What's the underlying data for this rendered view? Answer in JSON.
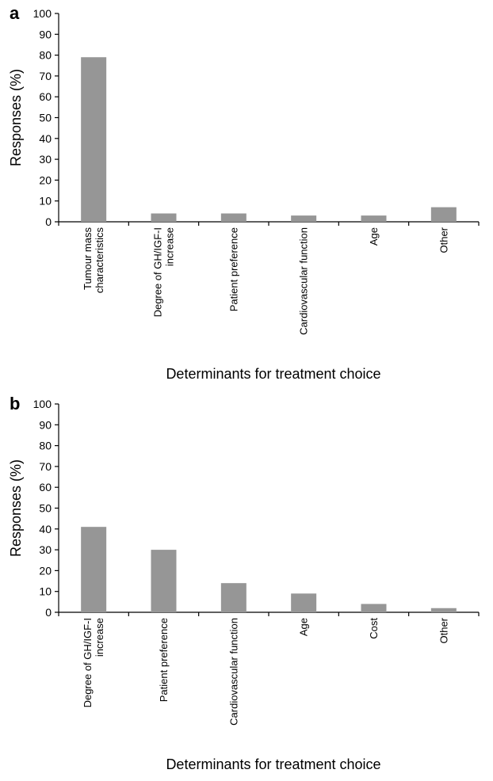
{
  "chart_data": [
    {
      "panel": "a",
      "type": "bar",
      "categories": [
        [
          "Tumour mass",
          "characteristics"
        ],
        [
          "Degree of GH/IGF-I",
          "increase"
        ],
        [
          "Patient preference"
        ],
        [
          "Cardiovascular function"
        ],
        [
          "Age"
        ],
        [
          "Other"
        ]
      ],
      "values": [
        79,
        4,
        4,
        3,
        3,
        7
      ],
      "xlabel": "Determinants for treatment choice",
      "ylabel": "Responses (%)",
      "ylim": [
        0,
        100
      ],
      "yticks": [
        0,
        10,
        20,
        30,
        40,
        50,
        60,
        70,
        80,
        90,
        100
      ],
      "bar_color": "#969696",
      "grid": false
    },
    {
      "panel": "b",
      "type": "bar",
      "categories": [
        [
          "Degree of GH/IGF-I",
          "increase"
        ],
        [
          "Patient preference"
        ],
        [
          "Cardiovascular function"
        ],
        [
          "Age"
        ],
        [
          "Cost"
        ],
        [
          "Other"
        ]
      ],
      "values": [
        41,
        30,
        14,
        9,
        4,
        2
      ],
      "xlabel": "Determinants for treatment choice",
      "ylabel": "Responses (%)",
      "ylim": [
        0,
        100
      ],
      "yticks": [
        0,
        10,
        20,
        30,
        40,
        50,
        60,
        70,
        80,
        90,
        100
      ],
      "bar_color": "#969696",
      "grid": false
    }
  ]
}
